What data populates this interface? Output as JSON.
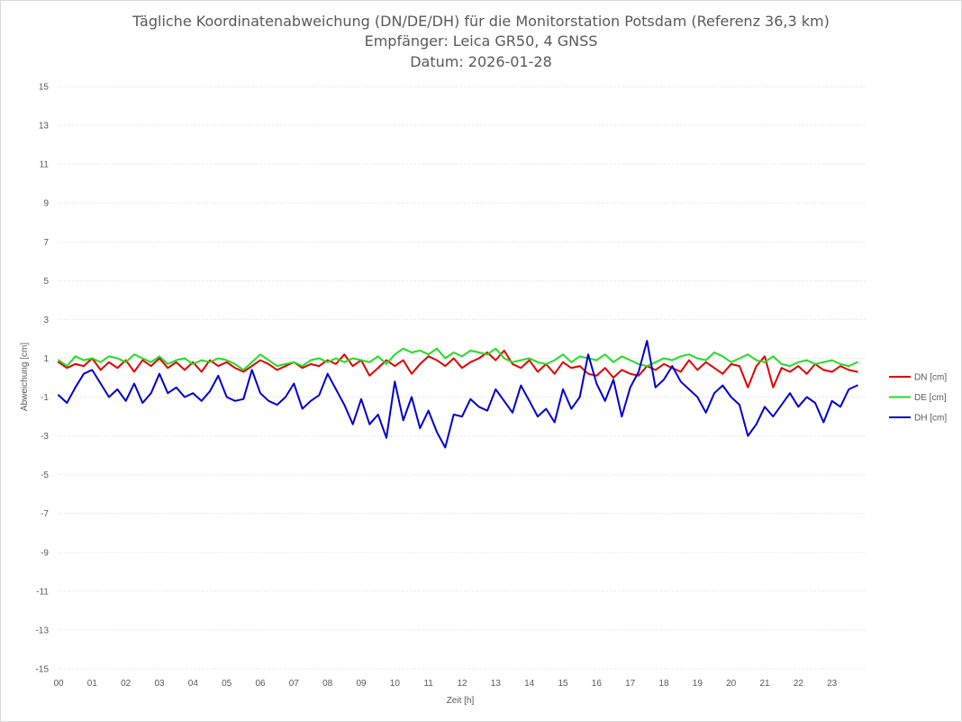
{
  "chart_data": {
    "type": "line",
    "title": [
      "Tägliche Koordinatenabweichung (DN/DE/DH) für die Monitorstation Potsdam (Referenz 36,3 km)",
      "Empfänger: Leica GR50, 4 GNSS",
      "Datum: 2026-01-28"
    ],
    "xlabel": "Zeit [h]",
    "ylabel": "Abweichung [cm]",
    "xlim": [
      0,
      24
    ],
    "ylim": [
      -15,
      15
    ],
    "x_ticks": [
      0,
      1,
      2,
      3,
      4,
      5,
      6,
      7,
      8,
      9,
      10,
      11,
      12,
      13,
      14,
      15,
      16,
      17,
      18,
      19,
      20,
      21,
      22,
      23
    ],
    "x_tick_labels": [
      "00",
      "01",
      "02",
      "03",
      "04",
      "05",
      "06",
      "07",
      "08",
      "09",
      "10",
      "11",
      "12",
      "13",
      "14",
      "15",
      "16",
      "17",
      "18",
      "19",
      "20",
      "21",
      "22",
      "23"
    ],
    "y_ticks": [
      15,
      13,
      11,
      9,
      7,
      5,
      3,
      1,
      -1,
      -3,
      -5,
      -7,
      -9,
      -11,
      -13,
      -15
    ],
    "y_tick_labels": [
      "15",
      "13",
      "11",
      "9",
      "7",
      "5",
      "3",
      "1",
      "-1",
      "-3",
      "-5",
      "-7",
      "-9",
      "-11",
      "-13",
      "-15"
    ],
    "grid": "horizontal-dotted",
    "legend_position": "right",
    "x": [
      0.0,
      0.25,
      0.5,
      0.75,
      1.0,
      1.25,
      1.5,
      1.75,
      2.0,
      2.25,
      2.5,
      2.75,
      3.0,
      3.25,
      3.5,
      3.75,
      4.0,
      4.25,
      4.5,
      4.75,
      5.0,
      5.25,
      5.5,
      5.75,
      6.0,
      6.25,
      6.5,
      6.75,
      7.0,
      7.25,
      7.5,
      7.75,
      8.0,
      8.25,
      8.5,
      8.75,
      9.0,
      9.25,
      9.5,
      9.75,
      10.0,
      10.25,
      10.5,
      10.75,
      11.0,
      11.25,
      11.5,
      11.75,
      12.0,
      12.25,
      12.5,
      12.75,
      13.0,
      13.25,
      13.5,
      13.75,
      14.0,
      14.25,
      14.5,
      14.75,
      15.0,
      15.25,
      15.5,
      15.75,
      16.0,
      16.25,
      16.5,
      16.75,
      17.0,
      17.25,
      17.5,
      17.75,
      18.0,
      18.25,
      18.5,
      18.75,
      19.0,
      19.25,
      19.5,
      19.75,
      20.0,
      20.25,
      20.5,
      20.75,
      21.0,
      21.25,
      21.5,
      21.75,
      22.0,
      22.25,
      22.5,
      22.75,
      23.0,
      23.25,
      23.5,
      23.75
    ],
    "series": [
      {
        "name": "DN [cm]",
        "color": "#e00000",
        "values": [
          0.8,
          0.5,
          0.7,
          0.6,
          1.0,
          0.4,
          0.8,
          0.5,
          0.9,
          0.3,
          0.9,
          0.6,
          1.0,
          0.5,
          0.8,
          0.4,
          0.8,
          0.3,
          0.9,
          0.6,
          0.8,
          0.5,
          0.3,
          0.6,
          0.9,
          0.7,
          0.4,
          0.6,
          0.8,
          0.5,
          0.7,
          0.6,
          0.9,
          0.7,
          1.2,
          0.6,
          0.9,
          0.1,
          0.5,
          0.9,
          0.6,
          0.9,
          0.2,
          0.7,
          1.1,
          0.9,
          0.6,
          1.0,
          0.5,
          0.8,
          1.0,
          1.3,
          0.9,
          1.4,
          0.7,
          0.5,
          0.9,
          0.3,
          0.7,
          0.2,
          0.8,
          0.5,
          0.6,
          0.2,
          0.1,
          0.5,
          0.0,
          0.4,
          0.2,
          0.1,
          0.6,
          0.4,
          0.7,
          0.5,
          0.3,
          0.9,
          0.4,
          0.8,
          0.5,
          0.2,
          0.7,
          0.6,
          -0.5,
          0.6,
          1.1,
          -0.5,
          0.5,
          0.3,
          0.6,
          0.2,
          0.7,
          0.4,
          0.3,
          0.6,
          0.4,
          0.3
        ]
      },
      {
        "name": "DE [cm]",
        "color": "#22dd22",
        "values": [
          0.9,
          0.6,
          1.1,
          0.9,
          1.0,
          0.8,
          1.1,
          1.0,
          0.8,
          1.2,
          1.0,
          0.8,
          1.1,
          0.7,
          0.9,
          1.0,
          0.7,
          0.9,
          0.8,
          1.0,
          0.9,
          0.7,
          0.4,
          0.8,
          1.2,
          0.9,
          0.6,
          0.7,
          0.8,
          0.6,
          0.9,
          1.0,
          0.8,
          1.0,
          0.8,
          1.0,
          0.9,
          0.8,
          1.1,
          0.7,
          1.2,
          1.5,
          1.3,
          1.4,
          1.2,
          1.5,
          1.0,
          1.3,
          1.1,
          1.4,
          1.3,
          1.2,
          1.5,
          1.0,
          0.8,
          0.9,
          1.0,
          0.8,
          0.7,
          0.9,
          1.2,
          0.8,
          1.1,
          1.0,
          0.9,
          1.2,
          0.8,
          1.1,
          0.9,
          0.7,
          0.6,
          0.8,
          1.0,
          0.9,
          1.1,
          1.2,
          1.0,
          0.9,
          1.3,
          1.1,
          0.8,
          1.0,
          1.2,
          0.9,
          0.8,
          1.1,
          0.7,
          0.6,
          0.8,
          0.9,
          0.7,
          0.8,
          0.9,
          0.7,
          0.6,
          0.8
        ]
      },
      {
        "name": "DH [cm]",
        "color": "#0000d0",
        "values": [
          -0.9,
          -1.3,
          -0.5,
          0.2,
          0.4,
          -0.3,
          -1.0,
          -0.6,
          -1.2,
          -0.3,
          -1.3,
          -0.8,
          0.2,
          -0.8,
          -0.5,
          -1.0,
          -0.8,
          -1.2,
          -0.7,
          0.1,
          -1.0,
          -1.2,
          -1.1,
          0.4,
          -0.8,
          -1.2,
          -1.4,
          -1.0,
          -0.3,
          -1.6,
          -1.2,
          -0.9,
          0.2,
          -0.6,
          -1.4,
          -2.4,
          -1.1,
          -2.4,
          -1.9,
          -3.1,
          -0.2,
          -2.2,
          -1.0,
          -2.6,
          -1.7,
          -2.8,
          -3.6,
          -1.9,
          -2.0,
          -1.1,
          -1.5,
          -1.7,
          -0.6,
          -1.2,
          -1.8,
          -0.4,
          -1.2,
          -2.0,
          -1.6,
          -2.3,
          -0.6,
          -1.6,
          -1.0,
          1.2,
          -0.3,
          -1.2,
          -0.1,
          -2.0,
          -0.5,
          0.3,
          1.9,
          -0.5,
          -0.1,
          0.6,
          -0.2,
          -0.6,
          -1.0,
          -1.8,
          -0.8,
          -0.4,
          -1.0,
          -1.4,
          -3.0,
          -2.4,
          -1.5,
          -2.0,
          -1.4,
          -0.8,
          -1.5,
          -1.0,
          -1.3,
          -2.3,
          -1.2,
          -1.5,
          -0.6,
          -0.4
        ]
      }
    ]
  }
}
